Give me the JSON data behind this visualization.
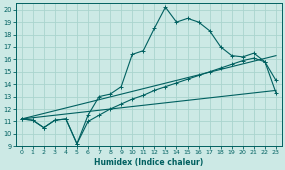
{
  "xlabel": "Humidex (Indice chaleur)",
  "xlim": [
    -0.5,
    23.5
  ],
  "ylim": [
    9,
    20.5
  ],
  "x_ticks": [
    0,
    1,
    2,
    3,
    4,
    5,
    6,
    7,
    8,
    9,
    10,
    11,
    12,
    13,
    14,
    15,
    16,
    17,
    18,
    19,
    20,
    21,
    22,
    23
  ],
  "y_ticks": [
    9,
    10,
    11,
    12,
    13,
    14,
    15,
    16,
    17,
    18,
    19,
    20
  ],
  "bg_color": "#cce9e5",
  "grid_color": "#aad4ce",
  "line_color": "#006060",
  "curve1_x": [
    0,
    1,
    2,
    3,
    4,
    5,
    6,
    7,
    8,
    9,
    10,
    11,
    12,
    13,
    14,
    15,
    16,
    17,
    18,
    19,
    20,
    21,
    22,
    23
  ],
  "curve1_y": [
    11.2,
    11.1,
    10.5,
    11.1,
    11.2,
    9.2,
    11.5,
    13.0,
    13.2,
    13.8,
    16.4,
    16.7,
    18.5,
    20.2,
    19.0,
    19.3,
    19.0,
    18.3,
    17.0,
    16.3,
    16.2,
    16.5,
    15.8,
    14.3
  ],
  "curve2_x": [
    0,
    1,
    2,
    3,
    4,
    5,
    6,
    7,
    8,
    9,
    10,
    11,
    12,
    13,
    14,
    15,
    16,
    17,
    18,
    19,
    20,
    21,
    22,
    23
  ],
  "curve2_y": [
    11.2,
    11.1,
    10.5,
    11.1,
    11.2,
    9.2,
    11.0,
    11.5,
    12.0,
    12.4,
    12.8,
    13.1,
    13.5,
    13.8,
    14.1,
    14.4,
    14.7,
    15.0,
    15.3,
    15.6,
    15.9,
    16.1,
    15.8,
    13.3
  ],
  "line1_x": [
    0,
    23
  ],
  "line1_y": [
    11.2,
    16.3
  ],
  "line2_x": [
    0,
    23
  ],
  "line2_y": [
    11.2,
    13.5
  ]
}
